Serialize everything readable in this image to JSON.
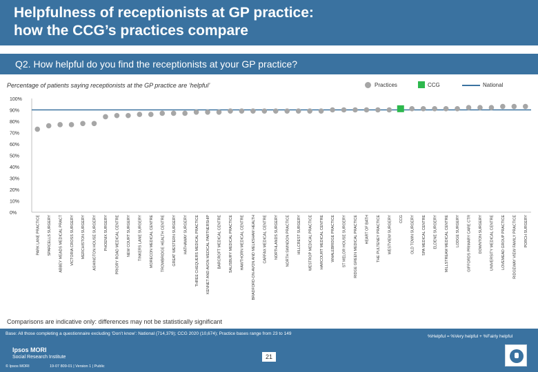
{
  "header": {
    "title_line1": "Helpfulness of receptionists at GP practice:",
    "title_line2": "how the CCG’s practices compare",
    "question": "Q2. How helpful do you find the receptionists at your GP practice?"
  },
  "legend": {
    "practices": "Practices",
    "ccg": "CCG",
    "national": "National"
  },
  "colors": {
    "practice_marker": "#a6a6a6",
    "ccg_marker": "#2db84d",
    "national_line": "#3a72a0",
    "brand": "#3a72a0"
  },
  "chart_data": {
    "type": "scatter",
    "title": "",
    "subtitle": "Percentage of patients saying receptionists at the GP practice are ‘helpful’",
    "ylabel": "",
    "ylim": [
      0,
      100
    ],
    "yticks": [
      "0%",
      "10%",
      "20%",
      "30%",
      "40%",
      "50%",
      "60%",
      "70%",
      "80%",
      "90%",
      "100%"
    ],
    "national_value": 90,
    "categories": [
      "PARK LANE PRACTICE",
      "SPARCELLS SURGERY",
      "ABBEY MEADS MEDICAL PRACT",
      "VICTORIA CROSS SURGERY",
      "MERCHISTON SURGERY",
      "ASHINGTON HOUSE SURGERY",
      "PHOENIX SURGERY",
      "PRIORY ROAD MEDICAL CENTRE",
      "NEW COURT SURGERY",
      "TINKERS LANE SURGERY",
      "MORECON MEDICAL CENTRE",
      "TROWBRIDGE HEALTH CENTRE",
      "GREAT WESTERN SURGERY",
      "HATHAWAY SURGERY",
      "THREE CHEQUERS MEDICAL PRACTICE",
      "KENNET AND AVON MEDICAL PARTNERSHIP",
      "BARCROFT MEDICAL CENTRE",
      "SALISBURY MEDICAL PRACTICE",
      "HAWTHORN MEDICAL CENTRE",
      "BRADFORD-ON-AVON AND MELKSHAM HEALTH",
      "CARFAX MEDICAL CENTRE",
      "NORTHLANDS SURGERY",
      "NORTH SWINDON PRACTICE",
      "HILLCREST SURGERY",
      "WESTROP MEDICAL PRACTICE",
      "HARCOURT MEDICAL CENTRE",
      "WHALEBRIDGE PRACTICE",
      "ST MELOR HOUSE SURGERY",
      "RIDGE GREEN MEDICAL PRACTICE",
      "HEART OF BATH",
      "THE PULTENEY PRACTICE",
      "WESTVIEW SURGERY",
      "CCG",
      "OLD TOWN SURGERY",
      "SPA MEDICAL CENTRE",
      "ELDENE SURGERY",
      "MILLSTREAM MEDICAL CENTRE",
      "LODGE SURGERY",
      "GIFFORDS PRIMARY CARE CTR",
      "DOWNTON SURGERY",
      "UNIVERSITY MEDICAL CENTRE",
      "LOVEMEAD GROUP PRACTICE",
      "RIDGEWAY VIEW FAMILY PRACTICE",
      "PORCH SURGERY"
    ],
    "values": [
      73,
      76,
      77,
      77,
      78,
      78,
      84,
      85,
      85,
      86,
      86,
      87,
      87,
      87,
      88,
      88,
      88,
      89,
      89,
      89,
      89,
      89,
      89,
      89,
      89,
      89,
      90,
      90,
      90,
      90,
      90,
      90,
      91,
      91,
      91,
      91,
      91,
      91,
      92,
      92,
      92,
      93,
      93,
      93
    ],
    "highlight_category": "CCG"
  },
  "footer": {
    "note": "Comparisons are indicative only: differences may not be statistically significant",
    "base": "Base: All those completing a questionnaire excluding ‘Don’t know’: National (714,379); CCG 2020 (10,674); Practice bases range from 23 to 149",
    "helpful_def": "%Helpful = %Very helpful + %Fairly helpful",
    "page_number": "21",
    "logo_line1": "Ipsos MORI",
    "logo_line2": "Social Research Institute",
    "copyright": "© Ipsos MORI",
    "job": "19-07 809-01 | Version 1 | Public"
  }
}
